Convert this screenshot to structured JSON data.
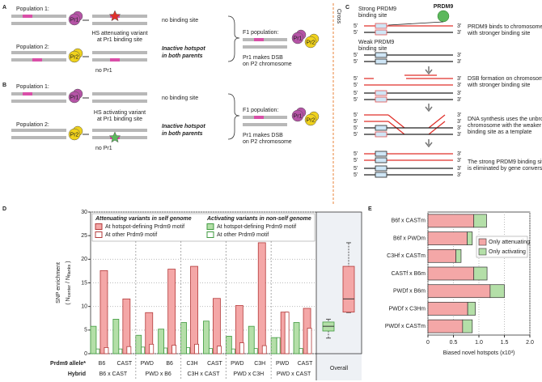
{
  "panel_a": {
    "label": "A",
    "population_1": "Population 1:",
    "population_2": "Population 2:",
    "pr1": "Pr1",
    "pr2": "Pr2",
    "no_binding_site": "no binding site",
    "variant": [
      "HS attenuating variant",
      "at Pr1 binding site"
    ],
    "inactive": [
      "Inactive hotspot",
      "in both parents"
    ],
    "no_pr1": "no Pr1",
    "f1_population": "F1 population:",
    "dsb": [
      "Pr1 makes DSB",
      "on P2 chromosome"
    ]
  },
  "panel_b": {
    "label": "B",
    "population_1": "Population 1:",
    "population_2": "Population 2:",
    "pr1": "Pr1",
    "pr2": "Pr2",
    "no_binding_site": "no binding site",
    "variant": [
      "HS activating variant",
      "at Pr1 binding site"
    ],
    "inactive": [
      "Inactive hotspot",
      "in both parents"
    ],
    "no_pr1": "no Pr1",
    "f1_population": "F1 population:",
    "dsb": [
      "Pr1 makes DSB",
      "on P2 chromosome"
    ]
  },
  "cross": "Cross",
  "panel_c": {
    "label": "C",
    "prdm9": "PRDM9",
    "strong": [
      "Strong PRDM9",
      "binding site"
    ],
    "weak": [
      "Weak PRDM9",
      "binding site"
    ],
    "five_prime": "5'",
    "three_prime": "3'",
    "steps": [
      [
        "PRDM9 binds to chromosome",
        "with stronger binding site"
      ],
      [
        "DSB formation on chromosome",
        "with stronger binding site"
      ],
      [
        "DNA synthesis uses the unbroken",
        "chromosome with the weaker",
        "binding site as a template"
      ],
      [
        "The strong PRDM9 binding site",
        "is eliminated by gene conversion"
      ]
    ]
  },
  "chart_data": [
    {
      "type": "bar",
      "panel_label": "D",
      "y_label": "SNP enrichment",
      "y_label_parts": [
        "( N",
        "center",
        " / N",
        "flanks",
        " )"
      ],
      "ylim": [
        0,
        30
      ],
      "yticks": [
        0,
        5,
        10,
        15,
        20,
        25,
        30
      ],
      "grid": true,
      "legend_titles": [
        "Attenuating variants in self genome",
        "Activating variants in non-self genome"
      ],
      "row_labels": [
        "Prdm9 allele*",
        "Hybrid"
      ],
      "categories": [
        "B6",
        "CAST",
        "PWD",
        "B6",
        "C3H",
        "CAST",
        "PWD",
        "C3H",
        "PWD",
        "CAST"
      ],
      "hybrids": [
        "B6 x CAST",
        "PWD x B6",
        "C3H x CAST",
        "PWD x C3H",
        "PWD x CAST"
      ],
      "series": [
        {
          "name": "At hotspot-defining Prdm9 motif",
          "color": "#f4a7a7",
          "stroke": "#b33a3a",
          "values": [
            17.6,
            11.6,
            8.7,
            17.9,
            18.5,
            11.7,
            10.2,
            23.5,
            8.8,
            9.6
          ]
        },
        {
          "name": "At other Prdm9 motif",
          "color": "#ffffff",
          "stroke": "#b33a3a",
          "values": [
            1.3,
            1.5,
            2.0,
            1.8,
            2.0,
            1.6,
            2.3,
            1.7,
            8.8,
            5.4
          ]
        },
        {
          "name": "At hotspot-defining Prdm9 motif",
          "color": "#b4dfa8",
          "stroke": "#3f9a3f",
          "values": [
            5.8,
            7.3,
            3.9,
            5.2,
            6.6,
            6.9,
            3.7,
            5.8,
            3.4,
            6.6
          ]
        },
        {
          "name": "At other Prdm9 motif",
          "color": "#ffffff",
          "stroke": "#3f9a3f",
          "values": [
            1.0,
            1.0,
            1.4,
            1.2,
            1.3,
            1.1,
            1.0,
            1.1,
            3.4,
            1.1
          ]
        }
      ],
      "overall": {
        "label": "Overall",
        "boxes": [
          {
            "color": "#b4dfa8",
            "stroke": "#3f9a3f",
            "low": 3.3,
            "q1": 4.8,
            "median": 5.8,
            "q3": 6.7,
            "high": 7.3
          },
          {
            "color": "#f4a7a7",
            "stroke": "#b33a3a",
            "low": 8.7,
            "q1": 8.8,
            "median": 11.6,
            "q3": 18.5,
            "high": 23.5
          }
        ]
      }
    },
    {
      "type": "hbar",
      "panel_label": "E",
      "stacked": true,
      "x_label": "Biased novel hotspots (x10³)",
      "categories": [
        "B6f x CASTm",
        "B6f x PWDm",
        "C3Hf x CASTm",
        "CASTf x B6m",
        "PWDf x B6m",
        "PWDf x C3Hm",
        "PWDf x CASTm"
      ],
      "series": [
        {
          "name": "Only attenuating",
          "color": "#f4a7a7",
          "values": [
            0.9,
            0.77,
            0.55,
            0.9,
            1.22,
            0.78,
            0.68
          ]
        },
        {
          "name": "Only activating",
          "color": "#b4dfa8",
          "values": [
            0.25,
            0.1,
            0.1,
            0.26,
            0.28,
            0.15,
            0.19
          ]
        }
      ],
      "xlim": [
        0,
        2
      ],
      "xticks": [
        0,
        0.5,
        {
          "value": 1,
          "label": "1.0"
        },
        1.5,
        {
          "value": 2,
          "label": "2.0"
        }
      ],
      "grid": true,
      "legend": "upper right"
    }
  ]
}
